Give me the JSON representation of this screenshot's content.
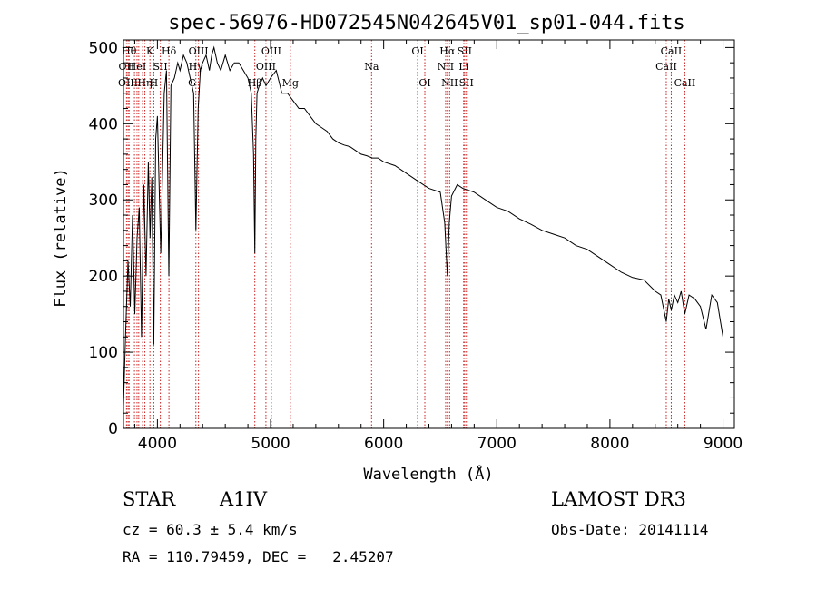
{
  "chart_data": {
    "type": "line",
    "title": "spec-56976-HD072545N042645V01_sp01-044.fits",
    "xlabel": "Wavelength (Å)",
    "ylabel": "Flux (relative)",
    "xlim": [
      3700,
      9100
    ],
    "ylim": [
      0,
      510
    ],
    "xticks": [
      4000,
      5000,
      6000,
      7000,
      8000,
      9000
    ],
    "yticks": [
      0,
      100,
      200,
      300,
      400,
      500
    ],
    "grid": false,
    "series": [
      {
        "x": [
          3700,
          3720,
          3740,
          3760,
          3780,
          3800,
          3820,
          3840,
          3860,
          3880,
          3900,
          3920,
          3935,
          3950,
          3968,
          3985,
          4000,
          4030,
          4060,
          4080,
          4101,
          4120,
          4150,
          4180,
          4200,
          4230,
          4260,
          4290,
          4320,
          4340,
          4360,
          4380,
          4400,
          4430,
          4460,
          4480,
          4500,
          4530,
          4560,
          4600,
          4640,
          4680,
          4720,
          4760,
          4800,
          4830,
          4850,
          4861,
          4870,
          4880,
          4900,
          4930,
          4960,
          5000,
          5050,
          5100,
          5150,
          5200,
          5250,
          5300,
          5350,
          5400,
          5450,
          5500,
          5550,
          5600,
          5650,
          5700,
          5750,
          5800,
          5850,
          5900,
          5950,
          6000,
          6100,
          6200,
          6300,
          6400,
          6500,
          6540,
          6563,
          6580,
          6600,
          6650,
          6700,
          6800,
          6900,
          7000,
          7100,
          7200,
          7300,
          7400,
          7500,
          7600,
          7700,
          7800,
          7900,
          8000,
          8100,
          8200,
          8300,
          8400,
          8450,
          8498,
          8520,
          8542,
          8570,
          8600,
          8630,
          8662,
          8700,
          8750,
          8800,
          8850,
          8900,
          8950,
          9000
        ],
        "y": [
          30,
          130,
          220,
          160,
          280,
          150,
          250,
          290,
          120,
          320,
          200,
          350,
          250,
          330,
          110,
          380,
          410,
          230,
          440,
          470,
          200,
          450,
          460,
          480,
          470,
          490,
          480,
          460,
          440,
          260,
          420,
          470,
          480,
          490,
          470,
          490,
          500,
          480,
          470,
          490,
          470,
          480,
          480,
          470,
          460,
          440,
          360,
          230,
          380,
          440,
          450,
          460,
          450,
          460,
          470,
          440,
          440,
          430,
          420,
          420,
          410,
          400,
          395,
          390,
          380,
          375,
          372,
          370,
          365,
          360,
          358,
          355,
          355,
          350,
          345,
          335,
          325,
          315,
          310,
          270,
          200,
          270,
          305,
          320,
          315,
          310,
          300,
          290,
          285,
          275,
          268,
          260,
          255,
          250,
          240,
          235,
          225,
          215,
          205,
          198,
          195,
          180,
          175,
          140,
          170,
          155,
          175,
          165,
          180,
          150,
          175,
          170,
          160,
          130,
          175,
          165,
          120
        ]
      }
    ],
    "lines": [
      {
        "wl": 3750,
        "label": "Hθ",
        "row": 0
      },
      {
        "wl": 3727,
        "label": "OII",
        "row": 1
      },
      {
        "wl": 3740,
        "label": "OIII",
        "row": 2
      },
      {
        "wl": 3797,
        "label": "",
        "row": -1
      },
      {
        "wl": 3835,
        "label": "",
        "row": -1
      },
      {
        "wl": 3869,
        "label": "",
        "row": -1
      },
      {
        "wl": 3889,
        "label": "Hη",
        "row": 2
      },
      {
        "wl": 3820,
        "label": "HeI",
        "row": 1
      },
      {
        "wl": 3934,
        "label": "K",
        "row": 0
      },
      {
        "wl": 3968,
        "label": "H",
        "row": 2
      },
      {
        "wl": 4026,
        "label": "SII",
        "row": 1
      },
      {
        "wl": 4102,
        "label": "Hδ",
        "row": 0
      },
      {
        "wl": 4306,
        "label": "G",
        "row": 2
      },
      {
        "wl": 4340,
        "label": "Hγ",
        "row": 1
      },
      {
        "wl": 4363,
        "label": "OIII",
        "row": 0
      },
      {
        "wl": 4861,
        "label": "Hβ",
        "row": 2
      },
      {
        "wl": 4959,
        "label": "OIII",
        "row": 1
      },
      {
        "wl": 5007,
        "label": "OIII",
        "row": 0
      },
      {
        "wl": 5175,
        "label": "Mg",
        "row": 2
      },
      {
        "wl": 5893,
        "label": "Na",
        "row": 1
      },
      {
        "wl": 6300,
        "label": "OI",
        "row": 0
      },
      {
        "wl": 6364,
        "label": "OI",
        "row": 2
      },
      {
        "wl": 6548,
        "label": "NII",
        "row": 1
      },
      {
        "wl": 6563,
        "label": "Hα",
        "row": 0
      },
      {
        "wl": 6583,
        "label": "NII",
        "row": 2
      },
      {
        "wl": 6707,
        "label": "Li",
        "row": 1
      },
      {
        "wl": 6716,
        "label": "SII",
        "row": 0
      },
      {
        "wl": 6731,
        "label": "SII",
        "row": 2
      },
      {
        "wl": 8498,
        "label": "CaII",
        "row": 1
      },
      {
        "wl": 8542,
        "label": "CaII",
        "row": 0
      },
      {
        "wl": 8662,
        "label": "CaII",
        "row": 2
      }
    ],
    "colors": {
      "spectrum": "#000000",
      "lines": "#cc2222"
    }
  },
  "info": {
    "object_class": "STAR",
    "subclass": "A1IV",
    "survey": "LAMOST DR3",
    "cz": "cz = 60.3 ± 5.4 km/s",
    "obs_date": "Obs-Date: 20141114",
    "radec": "RA = 110.79459, DEC =   2.45207"
  }
}
